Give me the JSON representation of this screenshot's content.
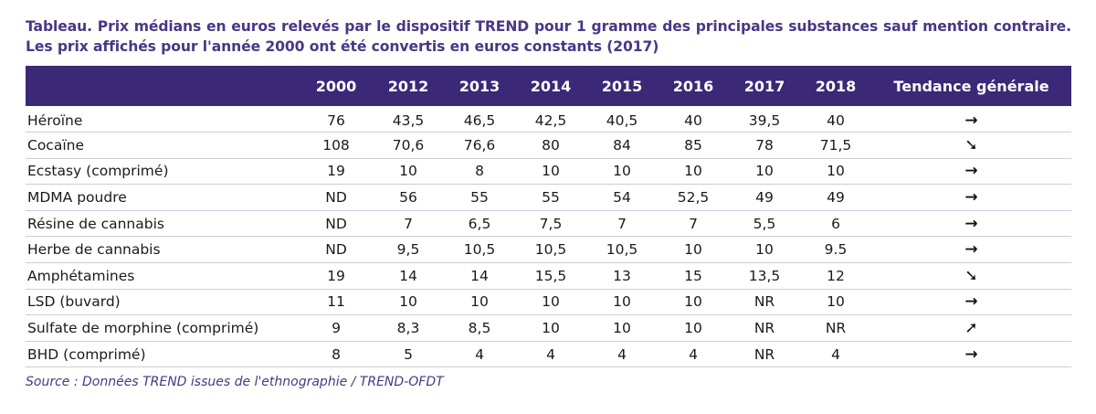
{
  "caption": "Tableau. Prix médians en euros relevés par le dispositif TREND pour 1 gramme des principales substances sauf mention contraire. Les prix affichés pour l'année 2000 ont été convertis en euros constants (2017)",
  "table": {
    "headers": [
      "",
      "2000",
      "2012",
      "2013",
      "2014",
      "2015",
      "2016",
      "2017",
      "2018",
      "Tendance générale"
    ],
    "rows": [
      {
        "name": "Héroïne",
        "values": [
          "76",
          "43,5",
          "46,5",
          "42,5",
          "40,5",
          "40",
          "39,5",
          "40"
        ],
        "trend": "→",
        "trend_icon": "arrow-right-icon"
      },
      {
        "name": "Cocaïne",
        "values": [
          "108",
          "70,6",
          "76,6",
          "80",
          "84",
          "85",
          "78",
          "71,5"
        ],
        "trend": "➘",
        "trend_icon": "arrow-down-right-icon"
      },
      {
        "name": "Ecstasy (comprimé)",
        "values": [
          "19",
          "10",
          "8",
          "10",
          "10",
          "10",
          "10",
          "10"
        ],
        "trend": "→",
        "trend_icon": "arrow-right-icon"
      },
      {
        "name": "MDMA poudre",
        "values": [
          "ND",
          "56",
          "55",
          "55",
          "54",
          "52,5",
          "49",
          "49"
        ],
        "trend": "→",
        "trend_icon": "arrow-right-icon"
      },
      {
        "name": "Résine de cannabis",
        "values": [
          "ND",
          "7",
          "6,5",
          "7,5",
          "7",
          "7",
          "5,5",
          "6"
        ],
        "trend": "→",
        "trend_icon": "arrow-right-icon"
      },
      {
        "name": "Herbe de cannabis",
        "values": [
          "ND",
          "9,5",
          "10,5",
          "10,5",
          "10,5",
          "10",
          "10",
          "9.5"
        ],
        "trend": "→",
        "trend_icon": "arrow-right-icon"
      },
      {
        "name": "Amphétamines",
        "values": [
          "19",
          "14",
          "14",
          "15,5",
          "13",
          "15",
          "13,5",
          "12"
        ],
        "trend": "➘",
        "trend_icon": "arrow-down-right-icon"
      },
      {
        "name": "LSD (buvard)",
        "values": [
          "11",
          "10",
          "10",
          "10",
          "10",
          "10",
          "NR",
          "10"
        ],
        "trend": "→",
        "trend_icon": "arrow-right-icon"
      },
      {
        "name": "Sulfate de morphine (comprimé)",
        "values": [
          "9",
          "8,3",
          "8,5",
          "10",
          "10",
          "10",
          "NR",
          "NR"
        ],
        "trend": "➚",
        "trend_icon": "arrow-up-right-icon"
      },
      {
        "name": "BHD (comprimé)",
        "values": [
          "8",
          "5",
          "4",
          "4",
          "4",
          "4",
          "NR",
          "4"
        ],
        "trend": "→",
        "trend_icon": "arrow-right-icon"
      }
    ]
  },
  "source": "Source : Données TREND issues de l'ethnographie / TREND-OFDT",
  "colors": {
    "header_bg": "#3b2877",
    "caption_text": "#4a3785",
    "row_rule": "#cfcbdc"
  }
}
